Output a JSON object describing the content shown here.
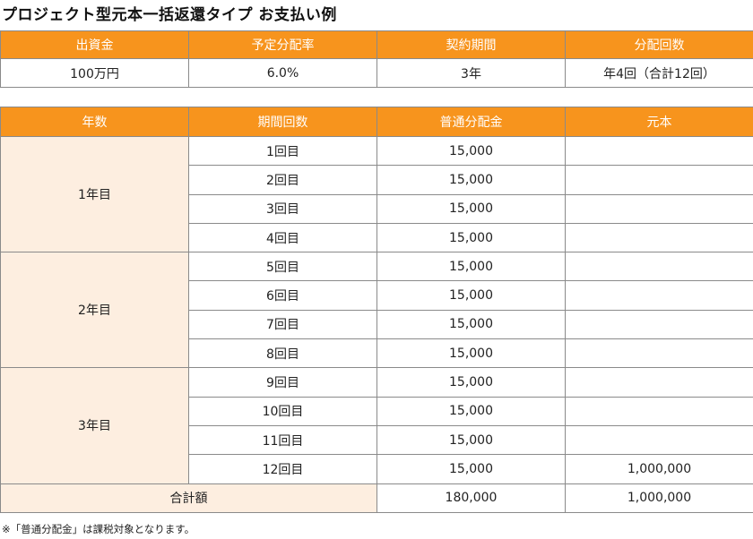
{
  "title": "プロジェクト型元本一括返還タイプ お支払い例",
  "summary": {
    "headers": [
      "出資金",
      "予定分配率",
      "契約期間",
      "分配回数"
    ],
    "values": [
      "100万円",
      "6.0%",
      "3年",
      "年4回（合計12回）"
    ]
  },
  "schedule": {
    "headers": [
      "年数",
      "期間回数",
      "普通分配金",
      "元本"
    ],
    "years": [
      {
        "label": "1年目",
        "rows": [
          {
            "period": "1回目",
            "dividend": "15,000",
            "principal": ""
          },
          {
            "period": "2回目",
            "dividend": "15,000",
            "principal": ""
          },
          {
            "period": "3回目",
            "dividend": "15,000",
            "principal": ""
          },
          {
            "period": "4回目",
            "dividend": "15,000",
            "principal": ""
          }
        ]
      },
      {
        "label": "2年目",
        "rows": [
          {
            "period": "5回目",
            "dividend": "15,000",
            "principal": ""
          },
          {
            "period": "6回目",
            "dividend": "15,000",
            "principal": ""
          },
          {
            "period": "7回目",
            "dividend": "15,000",
            "principal": ""
          },
          {
            "period": "8回目",
            "dividend": "15,000",
            "principal": ""
          }
        ]
      },
      {
        "label": "3年目",
        "rows": [
          {
            "period": "9回目",
            "dividend": "15,000",
            "principal": ""
          },
          {
            "period": "10回目",
            "dividend": "15,000",
            "principal": ""
          },
          {
            "period": "11回目",
            "dividend": "15,000",
            "principal": ""
          },
          {
            "period": "12回目",
            "dividend": "15,000",
            "principal": "1,000,000"
          }
        ]
      }
    ],
    "total": {
      "label": "合計額",
      "dividend": "180,000",
      "principal": "1,000,000"
    }
  },
  "note": "※「普通分配金」は課税対象となります。",
  "colors": {
    "header": "#f7941d",
    "label_fill": "#fdeee0"
  }
}
